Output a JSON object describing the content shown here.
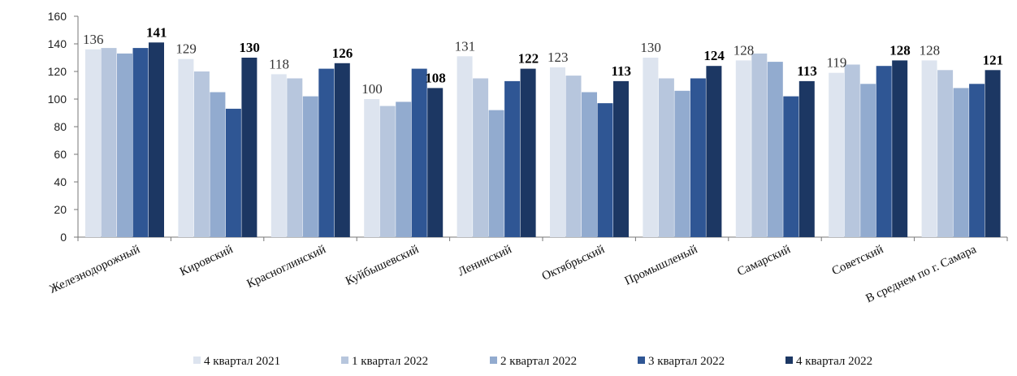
{
  "chart_data": {
    "type": "bar",
    "title": "",
    "xlabel": "",
    "ylabel": "",
    "ylim": [
      0,
      160
    ],
    "yticks": [
      0,
      20,
      40,
      60,
      80,
      100,
      120,
      140,
      160
    ],
    "grid": false,
    "legend_position": "bottom",
    "categories": [
      "Железнодорожный",
      "Кировский",
      "Красноглинский",
      "Куйбышевский",
      "Ленинский",
      "Октябрьский",
      "Промышленый",
      "Самарский",
      "Советский",
      "В среднем по г. Самара"
    ],
    "series": [
      {
        "name": "4 квартал 2021",
        "color": "#dde4ef",
        "values": [
          136,
          129,
          118,
          100,
          131,
          123,
          130,
          128,
          119,
          128
        ]
      },
      {
        "name": "1 квартал 2022",
        "color": "#b7c6dd",
        "values": [
          137,
          120,
          115,
          95,
          115,
          117,
          115,
          133,
          125,
          121
        ]
      },
      {
        "name": "2 квартал 2022",
        "color": "#92abcf",
        "values": [
          133,
          105,
          102,
          98,
          92,
          105,
          106,
          127,
          111,
          108
        ]
      },
      {
        "name": "3 квартал 2022",
        "color": "#2f5694",
        "values": [
          137,
          93,
          122,
          122,
          113,
          97,
          115,
          102,
          124,
          111
        ]
      },
      {
        "name": "4 квартал 2022",
        "color": "#1c3763",
        "values": [
          141,
          130,
          126,
          108,
          122,
          113,
          124,
          113,
          128,
          121
        ]
      }
    ],
    "labeled_series": [
      "4 квартал 2021",
      "4 квартал 2022"
    ]
  }
}
